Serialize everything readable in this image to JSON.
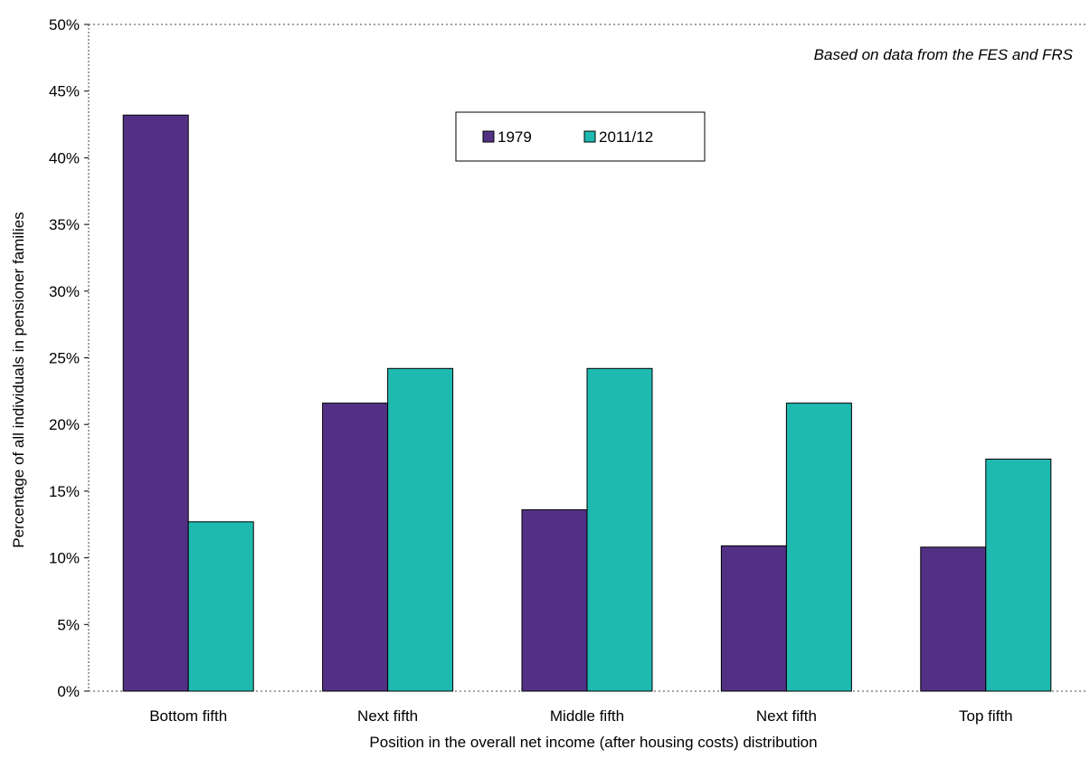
{
  "chart_data": {
    "type": "bar",
    "title": "",
    "annotation": "Based on data from the FES and FRS",
    "xlabel": "Position in the overall net income (after housing costs) distribution",
    "ylabel": "Percentage of all individuals in pensioner families",
    "categories": [
      "Bottom fifth",
      "Next fifth",
      "Middle fifth",
      "Next fifth",
      "Top fifth"
    ],
    "series": [
      {
        "name": "1979",
        "color": "#523185",
        "values": [
          43.2,
          21.6,
          13.6,
          10.9,
          10.8
        ]
      },
      {
        "name": "2011/12",
        "color": "#1FBAAF",
        "values": [
          12.7,
          24.2,
          24.2,
          21.6,
          17.4
        ]
      }
    ],
    "ylim": [
      0,
      50
    ],
    "yticks": [
      0,
      5,
      10,
      15,
      20,
      25,
      30,
      35,
      40,
      45,
      50
    ],
    "ytick_labels": [
      "0%",
      "5%",
      "10%",
      "15%",
      "20%",
      "25%",
      "30%",
      "35%",
      "40%",
      "45%",
      "50%"
    ],
    "grid": false,
    "legend_position": "top-center"
  }
}
